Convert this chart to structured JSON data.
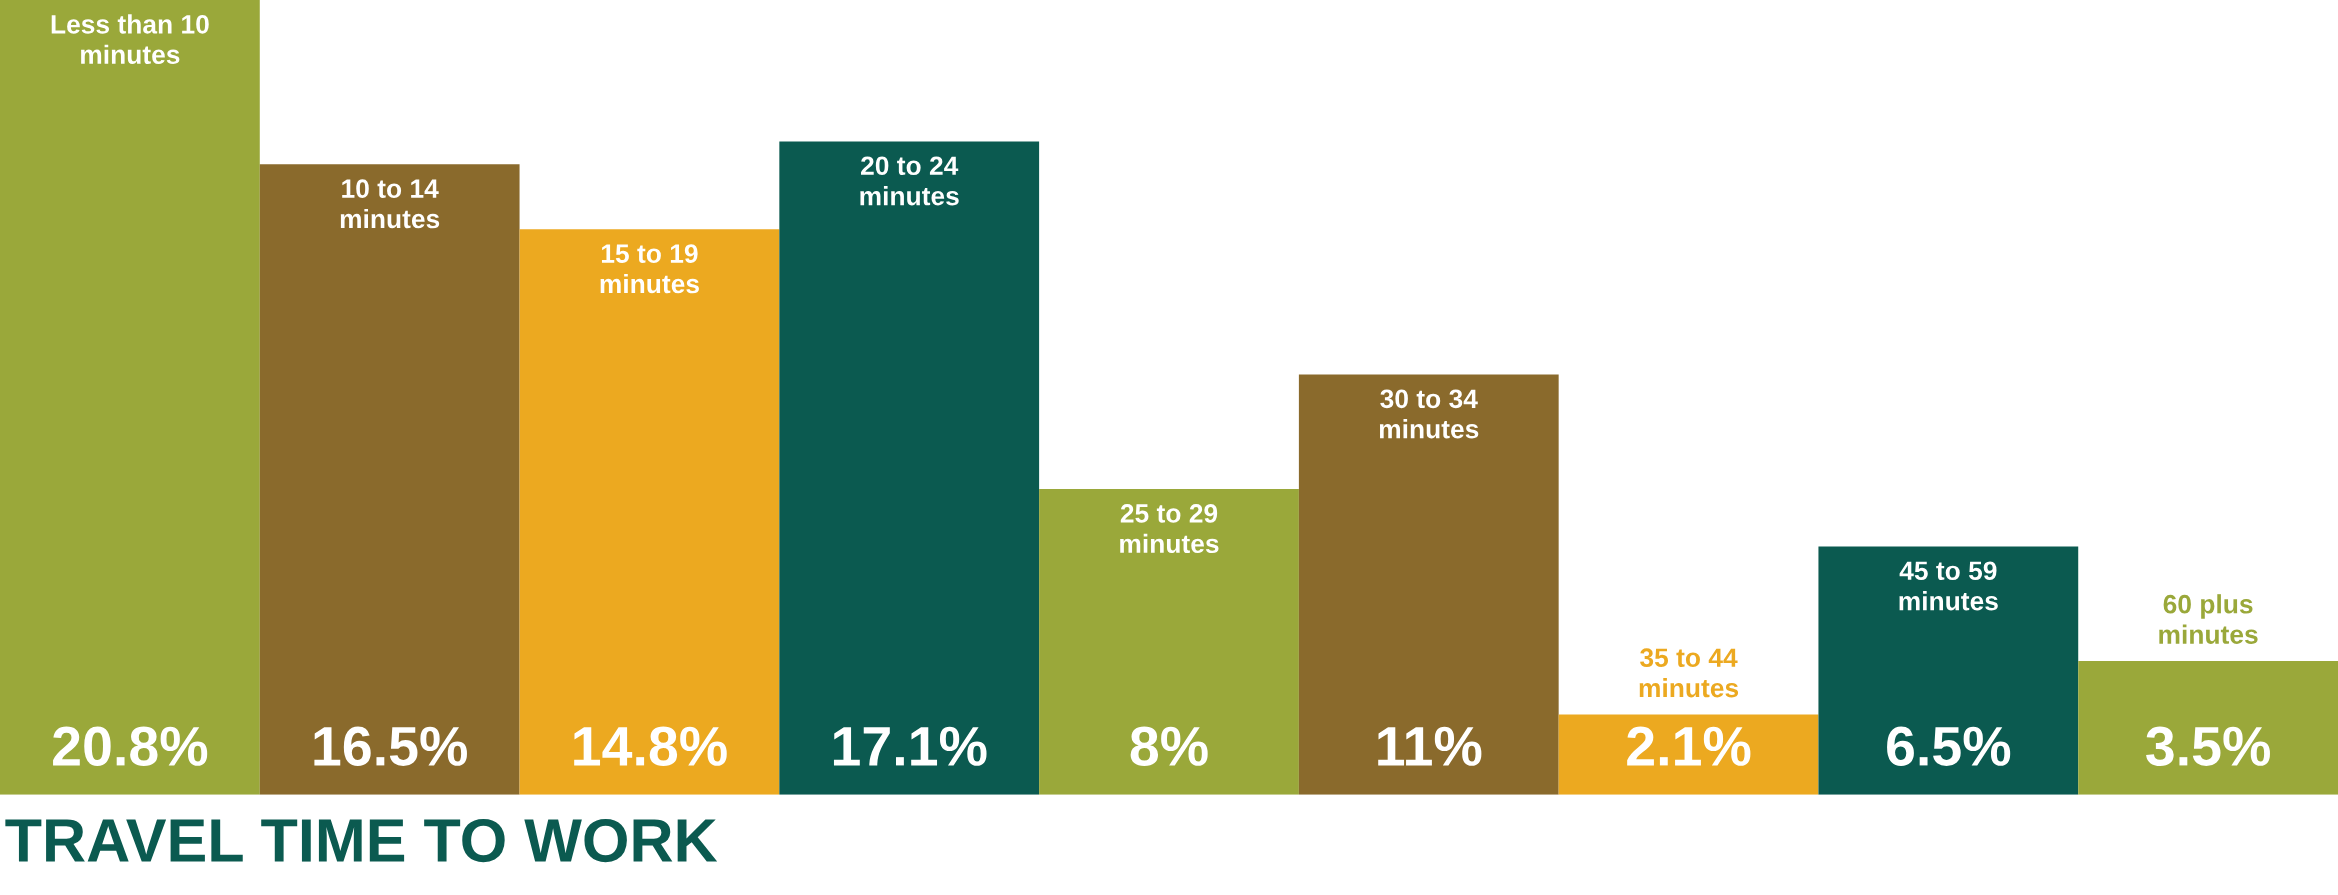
{
  "chart_data": {
    "type": "bar",
    "title": "TRAVEL TIME TO WORK",
    "categories": [
      "Less than 10 minutes",
      "10 to 14 minutes",
      "15 to 19 minutes",
      "20 to 24 minutes",
      "25 to 29 minutes",
      "30 to 34 minutes",
      "35 to 44 minutes",
      "45 to 59 minutes",
      "60 plus minutes"
    ],
    "values": [
      20.8,
      16.5,
      14.8,
      17.1,
      8,
      11,
      2.1,
      6.5,
      3.5
    ],
    "value_labels": [
      "20.8%",
      "16.5%",
      "14.8%",
      "17.1%",
      "8%",
      "11%",
      "2.1%",
      "6.5%",
      "3.5%"
    ],
    "colors": [
      "#9aa83a",
      "#8a6a2c",
      "#eca920",
      "#0b5a50",
      "#9aa83a",
      "#8a6a2c",
      "#eca920",
      "#0b5a50",
      "#9aa83a"
    ],
    "tick_labels": false
  }
}
